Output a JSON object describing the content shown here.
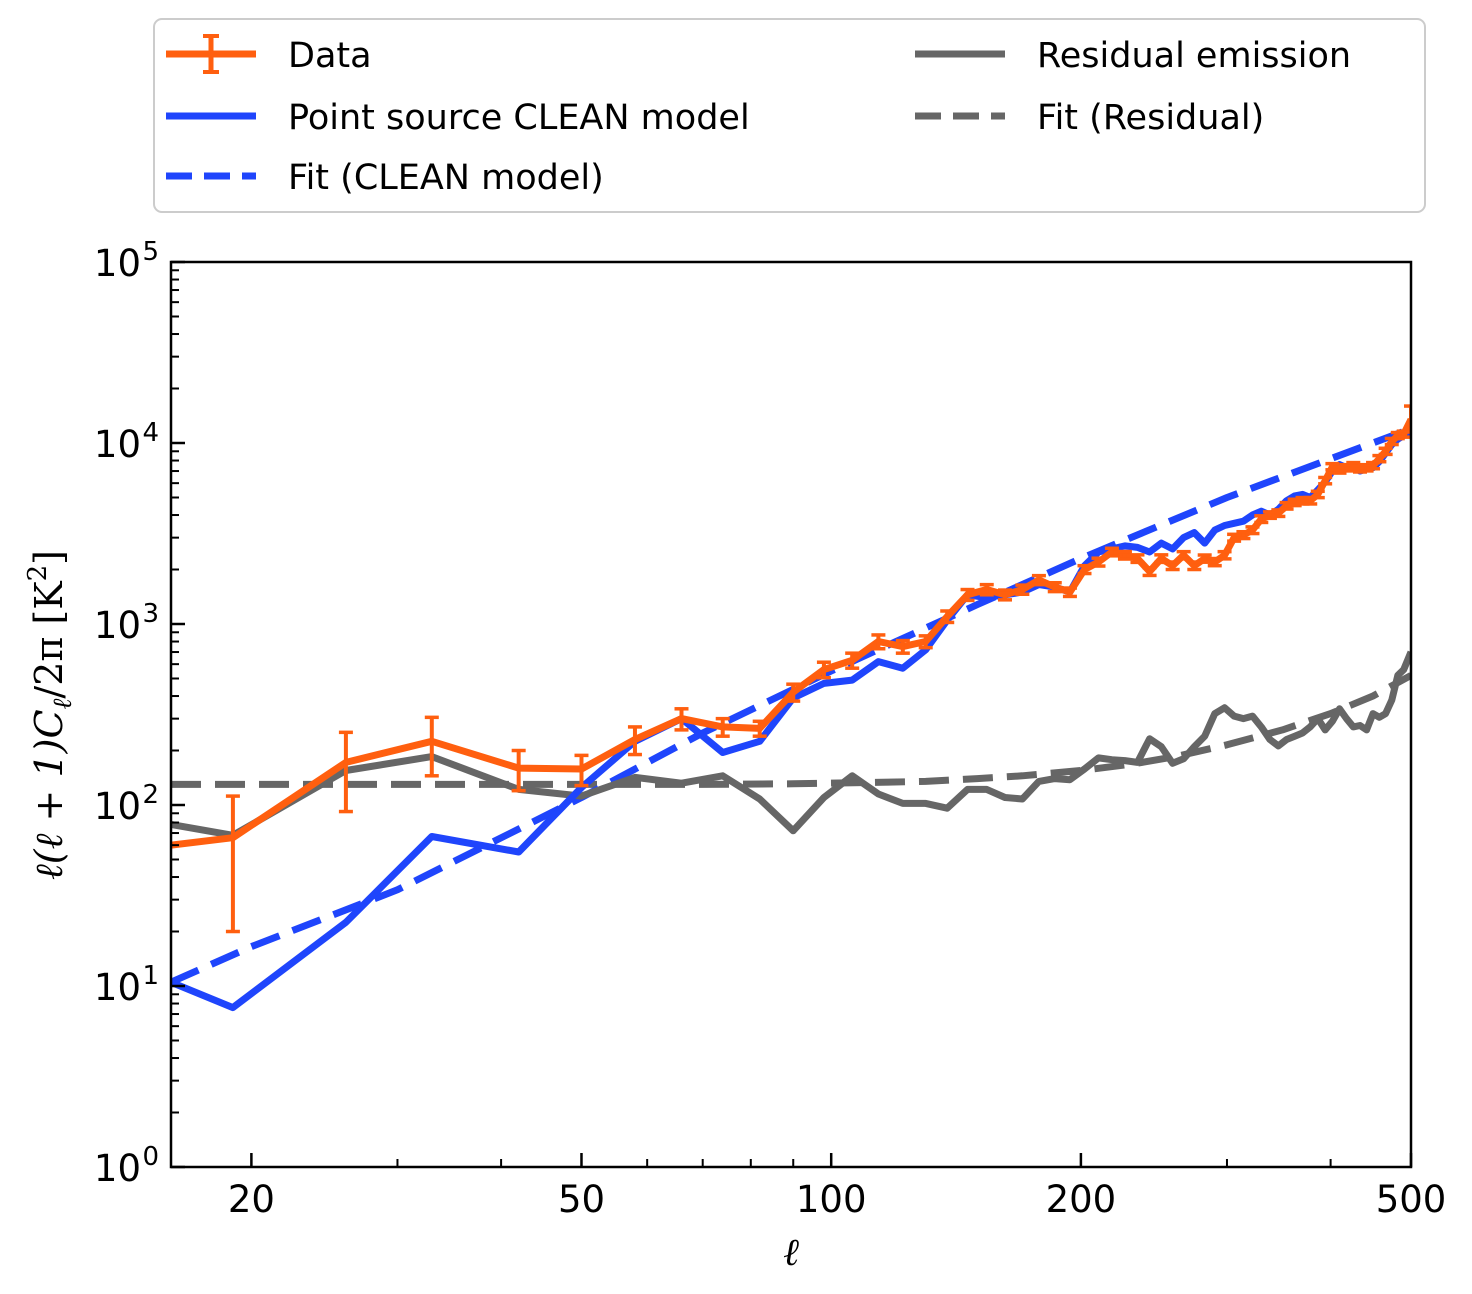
{
  "chart_data": {
    "type": "line",
    "xscale": "log",
    "yscale": "log",
    "xlim": [
      16,
      500
    ],
    "ylim": [
      1,
      100000
    ],
    "xlabel": "ℓ",
    "ylabel": "ℓ(ℓ + 1)C",
    "ylabel_sub": "ℓ",
    "ylabel_tail": "/2π [K",
    "ylabel_sup": "2",
    "ylabel_close": "]",
    "x_ticks": [
      {
        "value": 20,
        "label": "20"
      },
      {
        "value": 50,
        "label": "50"
      },
      {
        "value": 100,
        "label": "100"
      },
      {
        "value": 200,
        "label": "200"
      },
      {
        "value": 500,
        "label": "500"
      }
    ],
    "y_ticks": [
      {
        "value": 1,
        "base": "10",
        "exp": "0"
      },
      {
        "value": 10,
        "base": "10",
        "exp": "1"
      },
      {
        "value": 100,
        "base": "10",
        "exp": "2"
      },
      {
        "value": 1000,
        "base": "10",
        "exp": "3"
      },
      {
        "value": 10000,
        "base": "10",
        "exp": "4"
      },
      {
        "value": 100000,
        "base": "10",
        "exp": "5"
      }
    ],
    "legend": {
      "placement": "above",
      "columns": 2,
      "entries": [
        {
          "key": "data",
          "label": "Data"
        },
        {
          "key": "clean",
          "label": "Point source CLEAN model"
        },
        {
          "key": "clean_fit",
          "label": "Fit (CLEAN model)"
        },
        {
          "key": "residual",
          "label": "Residual emission"
        },
        {
          "key": "residual_fit",
          "label": "Fit (Residual)"
        }
      ]
    },
    "series": [
      {
        "key": "residual_fit",
        "name": "Fit (Residual)",
        "color": "#666666",
        "style": "dashed",
        "x": [
          16,
          30,
          50,
          70,
          90,
          110,
          130,
          150,
          170,
          200,
          230,
          260,
          300,
          350,
          400,
          450,
          500
        ],
        "y": [
          130,
          130,
          130,
          130,
          131,
          133,
          135,
          140,
          145,
          155,
          168,
          185,
          215,
          260,
          320,
          400,
          520
        ]
      },
      {
        "key": "clean_fit",
        "name": "Fit (CLEAN model)",
        "color": "#1f45fc",
        "style": "dashed",
        "x": [
          16,
          20,
          30,
          50,
          70,
          100,
          150,
          200,
          300,
          500
        ],
        "y": [
          10.5,
          16.5,
          34,
          110,
          250,
          550,
          1280,
          2300,
          5000,
          12000
        ]
      },
      {
        "key": "residual",
        "name": "Residual emission",
        "color": "#666666",
        "style": "solid",
        "x": [
          16,
          19,
          26,
          33,
          42,
          50,
          58,
          66,
          74,
          82,
          90,
          98,
          106,
          114,
          122,
          130,
          138,
          146,
          154,
          162,
          170,
          178,
          186,
          194,
          202,
          210,
          218,
          226,
          234,
          242,
          250,
          258,
          266,
          274,
          282,
          290,
          298,
          306,
          314,
          322,
          330,
          338,
          346,
          354,
          362,
          370,
          378,
          386,
          394,
          402,
          410,
          418,
          426,
          434,
          442,
          450,
          458,
          466,
          474,
          482,
          490,
          500
        ],
        "y": [
          78,
          68,
          155,
          185,
          122,
          112,
          142,
          132,
          145,
          108,
          72,
          110,
          145,
          115,
          102,
          102,
          96,
          122,
          122,
          110,
          108,
          135,
          140,
          138,
          158,
          182,
          178,
          176,
          172,
          232,
          210,
          170,
          180,
          210,
          240,
          320,
          345,
          310,
          300,
          310,
          270,
          230,
          212,
          230,
          240,
          250,
          270,
          300,
          260,
          290,
          340,
          300,
          270,
          275,
          260,
          320,
          305,
          320,
          380,
          520,
          560,
          700
        ]
      },
      {
        "key": "clean",
        "name": "Point source CLEAN model",
        "color": "#1f45fc",
        "style": "solid",
        "x": [
          16,
          19,
          26,
          33,
          42,
          50,
          58,
          66,
          74,
          82,
          90,
          98,
          106,
          114,
          122,
          130,
          138,
          146,
          154,
          162,
          170,
          178,
          186,
          194,
          202,
          210,
          218,
          226,
          234,
          242,
          250,
          258,
          266,
          274,
          282,
          290,
          298,
          306,
          314,
          322,
          330,
          338,
          346,
          354,
          362,
          370,
          378,
          386,
          394,
          402,
          410,
          418,
          426,
          434,
          442,
          450,
          458,
          466,
          474,
          482,
          490,
          500
        ],
        "y": [
          10.5,
          7.6,
          22.5,
          67,
          55,
          125,
          225,
          300,
          195,
          225,
          390,
          470,
          490,
          620,
          570,
          720,
          1050,
          1450,
          1400,
          1450,
          1500,
          1650,
          1600,
          1500,
          2100,
          2500,
          2600,
          2700,
          2650,
          2500,
          2800,
          2600,
          3000,
          3200,
          2800,
          3300,
          3500,
          3600,
          3700,
          4000,
          4200,
          4000,
          4300,
          4800,
          5100,
          5200,
          5000,
          5500,
          6100,
          7000,
          7600,
          7300,
          7500,
          7000,
          7200,
          7300,
          7900,
          8800,
          9800,
          10500,
          11000,
          11500
        ]
      },
      {
        "key": "data",
        "name": "Data",
        "color": "#ff5f0f",
        "style": "solid",
        "error_bars": true,
        "x": [
          16,
          19,
          26,
          33,
          42,
          50,
          58,
          66,
          74,
          82,
          90,
          98,
          106,
          114,
          122,
          130,
          138,
          146,
          154,
          162,
          170,
          178,
          186,
          194,
          202,
          210,
          218,
          226,
          234,
          242,
          250,
          258,
          266,
          274,
          282,
          290,
          298,
          306,
          314,
          322,
          330,
          338,
          346,
          354,
          362,
          370,
          378,
          386,
          394,
          402,
          410,
          418,
          426,
          434,
          442,
          450,
          458,
          466,
          474,
          482,
          490,
          500
        ],
        "y": [
          60,
          66,
          172,
          225,
          160,
          158,
          230,
          300,
          270,
          265,
          420,
          560,
          630,
          800,
          750,
          800,
          1100,
          1450,
          1550,
          1450,
          1550,
          1750,
          1600,
          1500,
          2000,
          2200,
          2500,
          2400,
          2300,
          1950,
          2300,
          2100,
          2400,
          2100,
          2300,
          2200,
          2400,
          3000,
          3100,
          3300,
          3800,
          4000,
          4100,
          4500,
          4700,
          4800,
          4800,
          5200,
          6200,
          7400,
          7100,
          7300,
          7500,
          7200,
          7300,
          7500,
          8200,
          9000,
          10200,
          11000,
          11200,
          13500
        ],
        "yerr_low": [
          0,
          46,
          80,
          80,
          40,
          30,
          40,
          40,
          30,
          25,
          45,
          55,
          60,
          70,
          60,
          60,
          80,
          100,
          100,
          90,
          90,
          100,
          90,
          80,
          100,
          110,
          120,
          115,
          110,
          95,
          110,
          100,
          110,
          100,
          105,
          100,
          110,
          130,
          135,
          140,
          160,
          165,
          170,
          185,
          190,
          195,
          195,
          210,
          250,
          290,
          280,
          290,
          295,
          285,
          290,
          295,
          320,
          350,
          395,
          425,
          430,
          2000
        ],
        "yerr_high": [
          0,
          46,
          80,
          80,
          40,
          30,
          40,
          40,
          30,
          25,
          45,
          55,
          60,
          70,
          60,
          60,
          80,
          100,
          100,
          90,
          90,
          100,
          90,
          80,
          100,
          110,
          120,
          115,
          110,
          95,
          110,
          100,
          110,
          100,
          105,
          100,
          110,
          130,
          135,
          140,
          160,
          165,
          170,
          185,
          190,
          195,
          195,
          210,
          250,
          290,
          280,
          290,
          295,
          285,
          290,
          295,
          320,
          350,
          395,
          425,
          430,
          2500
        ]
      }
    ]
  }
}
